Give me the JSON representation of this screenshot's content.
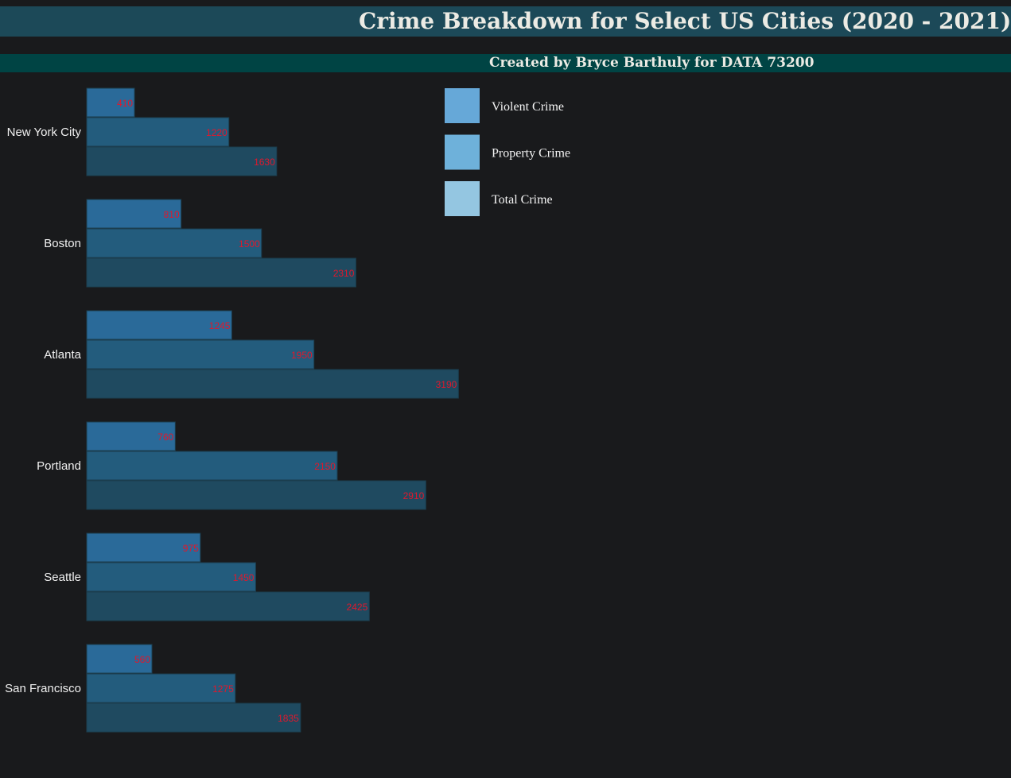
{
  "header": {
    "title": "Crime Breakdown for Select US Cities (2020 - 2021)",
    "subtitle": "Created by Bryce Barthuly for DATA 73200"
  },
  "colors": {
    "background": "#191a1c",
    "title_bar": "#1c4958",
    "subtitle_bar": "#004444",
    "value_label": "#e0182c"
  },
  "chart_data": {
    "type": "bar",
    "orientation": "horizontal",
    "categories": [
      "New York City",
      "Boston",
      "Atlanta",
      "Portland",
      "Seattle",
      "San Francisco"
    ],
    "series": [
      {
        "name": "Violent Crime",
        "values": [
          410,
          810,
          1245,
          760,
          975,
          560
        ],
        "bar_color": "#2a6a99",
        "legend_color": "#66a8d8"
      },
      {
        "name": "Property Crime",
        "values": [
          1220,
          1500,
          1950,
          2150,
          1450,
          1275
        ],
        "bar_color": "#235c7d",
        "legend_color": "#6eb1da"
      },
      {
        "name": "Total Crime",
        "values": [
          1630,
          2310,
          3190,
          2910,
          2425,
          1835
        ],
        "bar_color": "#1f4a60",
        "legend_color": "#94c6e1"
      }
    ],
    "xlim": [
      0,
      3200
    ],
    "grid": false,
    "legend_position": "top-center"
  }
}
